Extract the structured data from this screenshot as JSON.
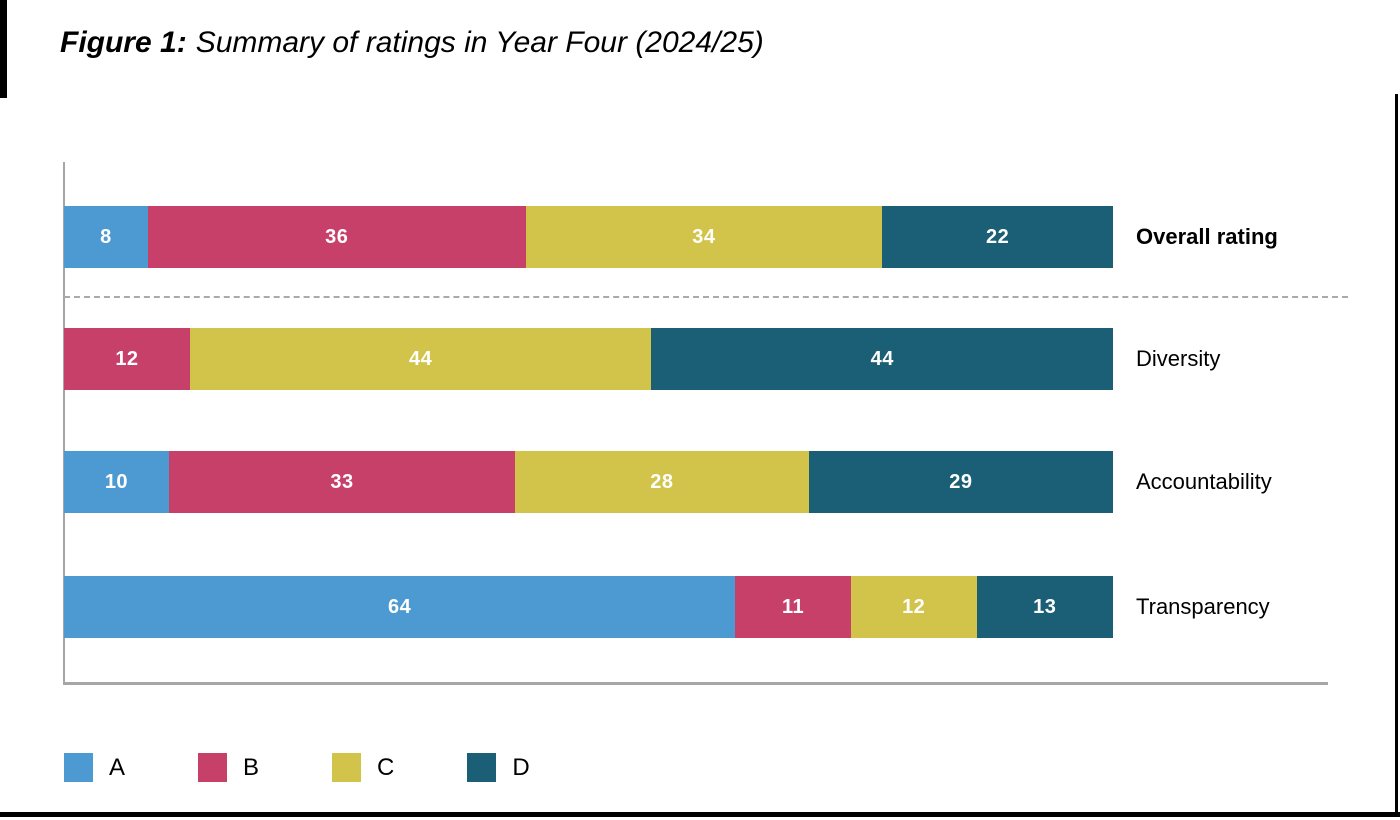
{
  "title": {
    "prefix": "Figure 1:",
    "text": "Summary of ratings in Year Four (2024/25)"
  },
  "chart_data": {
    "type": "bar",
    "orientation": "horizontal",
    "stacked": true,
    "title": "Figure 1: Summary of ratings in Year Four (2024/25)",
    "xlabel": "",
    "ylabel": "",
    "xlim": [
      0,
      100
    ],
    "grid": false,
    "legend_position": "bottom",
    "categories": [
      "Overall rating",
      "Diversity",
      "Accountability",
      "Transparency"
    ],
    "categories_bold": [
      true,
      false,
      false,
      false
    ],
    "separator_after_category": "Overall rating",
    "series": [
      {
        "name": "A",
        "color": "#4d9ad2",
        "values": [
          8,
          0,
          10,
          64
        ]
      },
      {
        "name": "B",
        "color": "#c7406a",
        "values": [
          36,
          12,
          33,
          11
        ]
      },
      {
        "name": "C",
        "color": "#d2c34a",
        "values": [
          34,
          44,
          28,
          12
        ]
      },
      {
        "name": "D",
        "color": "#1a5f76",
        "values": [
          22,
          44,
          29,
          13
        ]
      }
    ],
    "legend": [
      "A",
      "B",
      "C",
      "D"
    ],
    "value_label_color": "#ffffff",
    "axis_color": "#a6a6a6"
  }
}
